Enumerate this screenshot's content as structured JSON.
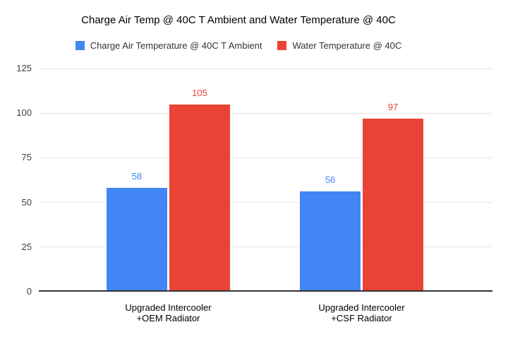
{
  "chart": {
    "title": "Charge Air Temp @ 40C T Ambient and Water Temperature @ 40C",
    "legend": [
      {
        "label": "Charge Air Temperature @ 40C T Ambient",
        "color": "#4285F4"
      },
      {
        "label": "Water Temperature @ 40C",
        "color": "#EA4335"
      }
    ]
  },
  "chart_data": {
    "type": "bar",
    "title": "Charge Air Temp @ 40C T Ambient and Water Temperature @ 40C",
    "categories": [
      "Upgraded Intercooler\n+OEM Radiator",
      "Upgraded Intercooler\n+CSF Radiator"
    ],
    "series": [
      {
        "name": "Charge Air Temperature @ 40C T Ambient",
        "color": "#4285F4",
        "values": [
          58,
          56
        ]
      },
      {
        "name": "Water Temperature @ 40C",
        "color": "#EA4335",
        "values": [
          105,
          97
        ]
      }
    ],
    "xlabel": "",
    "ylabel": "",
    "ylim": [
      0,
      125
    ],
    "yticks": [
      0,
      25,
      50,
      75,
      100,
      125
    ],
    "grid": true,
    "legend_position": "top",
    "data_labels": true
  },
  "colors": {
    "background": "#ffffff",
    "gridline": "#e6e6e6",
    "axis_line": "#333333",
    "title_text": "#000000",
    "tick_text": "#424242",
    "category_text": "#000000"
  }
}
